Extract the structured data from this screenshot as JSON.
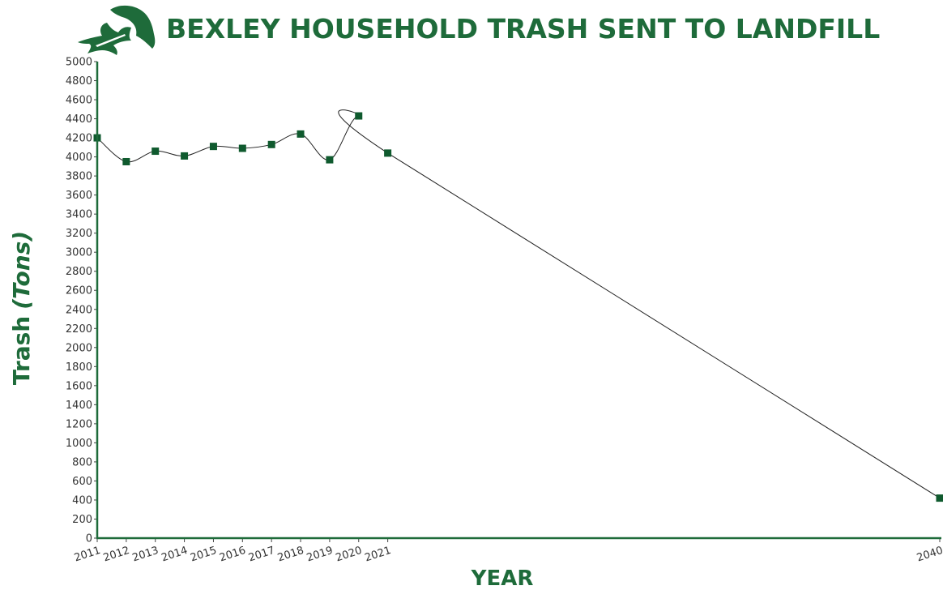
{
  "colors": {
    "brand": "#1e6b3a",
    "marker": "#0f5a2e",
    "line": "#222222"
  },
  "logo": {
    "icon": "oak-leaf-icon"
  },
  "chart_data": {
    "type": "line",
    "title": "BEXLEY HOUSEHOLD TRASH SENT TO LANDFILL",
    "xlabel": "YEAR",
    "ylabel_main": "Trash",
    "ylabel_unit": "(Tons)",
    "x_scale": "linear-years",
    "xlim": [
      2011,
      2040
    ],
    "ylim": [
      0,
      5000
    ],
    "y_ticks": [
      0,
      200,
      400,
      600,
      800,
      1000,
      1200,
      1400,
      1600,
      1800,
      2000,
      2200,
      2400,
      2600,
      2800,
      3000,
      3200,
      3400,
      3600,
      3800,
      4000,
      4200,
      4400,
      4600,
      4800,
      5000
    ],
    "x_ticks": [
      "2011",
      "2012",
      "2013",
      "2014",
      "2015",
      "2016",
      "2017",
      "2018",
      "2019",
      "2020",
      "2021",
      "2040"
    ],
    "grid": false,
    "series": [
      {
        "x": [
          2011,
          2012,
          2013,
          2014,
          2015,
          2016,
          2017,
          2018,
          2019,
          2020,
          2021,
          2040
        ],
        "y": [
          4200,
          3950,
          4060,
          4010,
          4110,
          4090,
          4130,
          4240,
          3970,
          4430,
          4040,
          420
        ]
      }
    ]
  }
}
